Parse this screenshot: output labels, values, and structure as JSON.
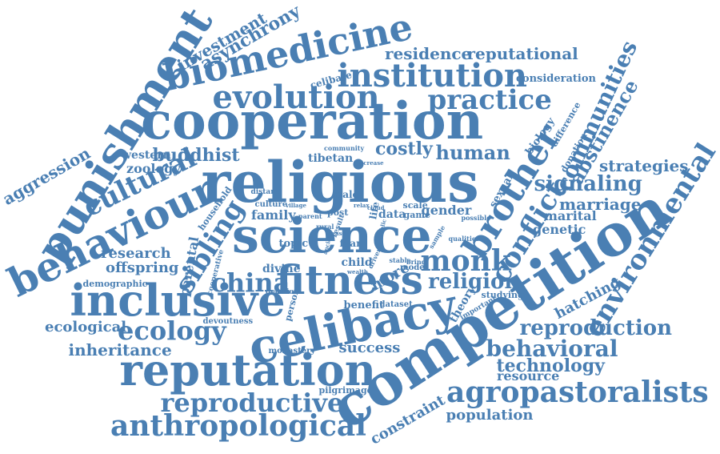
{
  "cloud": {
    "color": "#4a7fb3",
    "background": "#ffffff",
    "words": [
      "religious",
      "cooperation",
      "competition",
      "science",
      "celibacy",
      "reputation",
      "inclusive",
      "fitness",
      "punishment",
      "biomedicine",
      "behaviour",
      "evolution",
      "institution",
      "practice",
      "agropastoralists",
      "brother",
      "conflict",
      "reproductive",
      "anthropological",
      "environmental",
      "cultural",
      "sibling",
      "monk",
      "china",
      "ecology",
      "reproduction",
      "behavioral",
      "communities",
      "signaling",
      "abstinence",
      "religion",
      "human",
      "costly",
      "buddhist",
      "residence",
      "reputational",
      "investment",
      "asynchrony",
      "aggression",
      "strategies",
      "marriage",
      "technology",
      "inheritance",
      "ecological",
      "success",
      "constraint",
      "population",
      "hatching",
      "research",
      "offspring",
      "parental",
      "marital",
      "genetic",
      "gender",
      "theory",
      "resource",
      "zoology",
      "western",
      "tibetan",
      "celibate",
      "consideration",
      "biology",
      "difference",
      "donation",
      "sexual",
      "family",
      "divine",
      "child",
      "more",
      "benefit",
      "topic",
      "data",
      "game",
      "scale",
      "demographic",
      "male",
      "post",
      "culture",
      "household",
      "pilgrimage",
      "monastery",
      "devoutness",
      "dataset",
      "studying",
      "important",
      "model",
      "decision",
      "person",
      "life",
      "fear",
      "distant",
      "community",
      "increase",
      "driven",
      "rural",
      "parent",
      "village",
      "relax",
      "result",
      "stable",
      "bring",
      "possible",
      "qualities",
      "sample",
      "cooperative",
      "wealth",
      "ease",
      "cloud",
      "public",
      "ancient"
    ]
  }
}
